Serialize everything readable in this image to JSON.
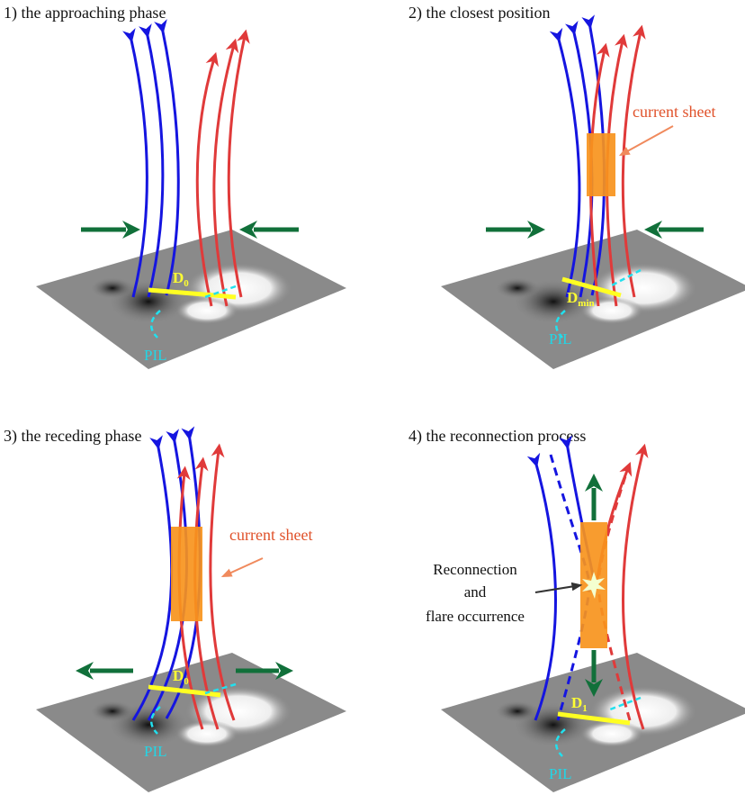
{
  "panels": [
    {
      "title": "1) the approaching phase",
      "distance": {
        "base": "D",
        "sub": "0"
      },
      "pil": "PIL"
    },
    {
      "title": "2) the closest position",
      "current_sheet": "current sheet",
      "distance": {
        "base": "D",
        "sub": "min"
      },
      "pil": "PIL"
    },
    {
      "title": "3) the receding phase",
      "current_sheet": "current sheet",
      "distance": {
        "base": "D",
        "sub": "0"
      },
      "pil": "PIL"
    },
    {
      "title": "4) the reconnection process",
      "annotation": [
        "Reconnection",
        "and",
        "flare occurrence"
      ],
      "distance": {
        "base": "D",
        "sub": "1"
      },
      "pil": "PIL"
    }
  ]
}
